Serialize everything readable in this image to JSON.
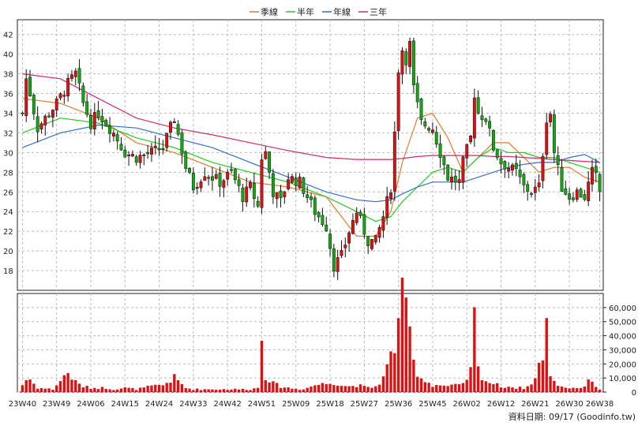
{
  "legend": [
    {
      "label": "季線",
      "color": "#e07b2e"
    },
    {
      "label": "半年",
      "color": "#22cc22"
    },
    {
      "label": "年線",
      "color": "#2f6fd0"
    },
    {
      "label": "三年",
      "color": "#d42a6a"
    }
  ],
  "footer": "資料日期: 09/17  (Goodinfo.tw)",
  "colors": {
    "up": "#dd1111",
    "down": "#11aa11",
    "volume": "#dd1111",
    "grid": "#bbbbbb"
  },
  "chart_data": {
    "type": "candlestick+volume",
    "price_ylim": [
      16,
      43.5
    ],
    "price_ticks": [
      18,
      20,
      22,
      24,
      26,
      28,
      30,
      32,
      34,
      36,
      38,
      40,
      42
    ],
    "volume_ylim": [
      0,
      70000
    ],
    "volume_ticks": [
      "0",
      "10,000",
      "20,000",
      "30,000",
      "40,000",
      "50,000",
      "60,000"
    ],
    "volume_tick_values": [
      0,
      10000,
      20000,
      30000,
      40000,
      50000,
      60000
    ],
    "x_labels": [
      "23W40",
      "23W49",
      "24W06",
      "24W15",
      "24W24",
      "24W33",
      "24W42",
      "24W51",
      "25W09",
      "25W18",
      "25W27",
      "25W36",
      "25W45",
      "26W02",
      "26W12",
      "26W21",
      "26W30",
      "26W38"
    ],
    "x_label_weeks": [
      0,
      9,
      18,
      27,
      36,
      45,
      54,
      63,
      72,
      81,
      90,
      99,
      108,
      117,
      126,
      135,
      144,
      152
    ],
    "anchors": [
      [
        0,
        34.0,
        5000
      ],
      [
        1,
        37.5,
        9000
      ],
      [
        2,
        36.0,
        9000
      ],
      [
        4,
        32.5,
        3000
      ],
      [
        8,
        34.5,
        2000
      ],
      [
        9,
        35.0,
        5000
      ],
      [
        12,
        37.0,
        14000
      ],
      [
        14,
        38.0,
        7000
      ],
      [
        16,
        35.0,
        4000
      ],
      [
        18,
        33.0,
        3000
      ],
      [
        20,
        34.0,
        3000
      ],
      [
        22,
        33.0,
        3000
      ],
      [
        24,
        32.0,
        2000
      ],
      [
        27,
        30.0,
        3000
      ],
      [
        30,
        29.5,
        2000
      ],
      [
        34,
        30.0,
        4000
      ],
      [
        37,
        30.5,
        5000
      ],
      [
        40,
        33.5,
        10000
      ],
      [
        43,
        28.5,
        3000
      ],
      [
        45,
        26.5,
        2000
      ],
      [
        48,
        28.0,
        2000
      ],
      [
        52,
        27.0,
        2000
      ],
      [
        55,
        28.0,
        2000
      ],
      [
        58,
        25.5,
        2000
      ],
      [
        60,
        26.5,
        2000
      ],
      [
        62,
        24.5,
        3000
      ],
      [
        63,
        29.5,
        44000
      ],
      [
        64,
        30.0,
        12000
      ],
      [
        66,
        26.0,
        6000
      ],
      [
        68,
        25.0,
        4000
      ],
      [
        70,
        27.5,
        3000
      ],
      [
        73,
        27.0,
        2000
      ],
      [
        75,
        25.5,
        3000
      ],
      [
        77,
        24.0,
        5000
      ],
      [
        80,
        22.5,
        6000
      ],
      [
        82,
        18.5,
        7000
      ],
      [
        84,
        19.5,
        5000
      ],
      [
        86,
        22.0,
        4000
      ],
      [
        88,
        24.0,
        5000
      ],
      [
        91,
        21.0,
        3000
      ],
      [
        93,
        21.0,
        4000
      ],
      [
        95,
        23.5,
        10000
      ],
      [
        97,
        26.5,
        25000
      ],
      [
        98,
        32.0,
        33000
      ],
      [
        99,
        38.5,
        58000
      ],
      [
        100,
        40.5,
        64000
      ],
      [
        101,
        39.5,
        52000
      ],
      [
        102,
        41.0,
        45000
      ],
      [
        103,
        36.5,
        20000
      ],
      [
        105,
        33.0,
        10000
      ],
      [
        108,
        32.5,
        5000
      ],
      [
        110,
        30.0,
        5000
      ],
      [
        112,
        27.5,
        4000
      ],
      [
        115,
        27.0,
        5000
      ],
      [
        116,
        29.0,
        5000
      ],
      [
        118,
        31.5,
        15000
      ],
      [
        119,
        36.0,
        51000
      ],
      [
        120,
        34.0,
        16000
      ],
      [
        122,
        33.5,
        8000
      ],
      [
        124,
        30.5,
        6000
      ],
      [
        126,
        29.0,
        4000
      ],
      [
        128,
        28.5,
        4000
      ],
      [
        130,
        28.0,
        3000
      ],
      [
        132,
        26.5,
        3000
      ],
      [
        134,
        26.0,
        5000
      ],
      [
        136,
        26.5,
        20000
      ],
      [
        137,
        30.0,
        22000
      ],
      [
        138,
        33.5,
        44000
      ],
      [
        139,
        34.0,
        14000
      ],
      [
        140,
        30.0,
        7000
      ],
      [
        142,
        26.5,
        4000
      ],
      [
        144,
        25.5,
        3000
      ],
      [
        146,
        26.0,
        3000
      ],
      [
        148,
        25.5,
        4000
      ],
      [
        150,
        28.0,
        10000
      ],
      [
        151,
        27.5,
        4000
      ],
      [
        152,
        26.0,
        2000
      ]
    ],
    "ma_series": [
      {
        "name": "季線",
        "color": "#e07b2e",
        "pts": [
          [
            0,
            35.5
          ],
          [
            10,
            35.0
          ],
          [
            20,
            33.5
          ],
          [
            30,
            31.0
          ],
          [
            40,
            30.0
          ],
          [
            50,
            28.5
          ],
          [
            60,
            27.0
          ],
          [
            70,
            26.5
          ],
          [
            80,
            25.5
          ],
          [
            88,
            21.5
          ],
          [
            93,
            21.5
          ],
          [
            97,
            24.0
          ],
          [
            100,
            29.0
          ],
          [
            104,
            33.5
          ],
          [
            108,
            34.0
          ],
          [
            112,
            31.5
          ],
          [
            116,
            28.0
          ],
          [
            120,
            29.5
          ],
          [
            124,
            31.0
          ],
          [
            128,
            31.0
          ],
          [
            132,
            29.5
          ],
          [
            136,
            28.0
          ],
          [
            140,
            28.5
          ],
          [
            144,
            28.5
          ],
          [
            148,
            27.5
          ],
          [
            152,
            27.0
          ]
        ]
      },
      {
        "name": "半年",
        "color": "#22cc22",
        "pts": [
          [
            0,
            32.0
          ],
          [
            10,
            33.5
          ],
          [
            20,
            33.0
          ],
          [
            30,
            31.5
          ],
          [
            40,
            30.5
          ],
          [
            50,
            29.0
          ],
          [
            60,
            28.0
          ],
          [
            70,
            27.0
          ],
          [
            80,
            25.5
          ],
          [
            88,
            24.0
          ],
          [
            93,
            23.0
          ],
          [
            97,
            23.5
          ],
          [
            100,
            25.0
          ],
          [
            104,
            26.5
          ],
          [
            108,
            28.0
          ],
          [
            112,
            28.5
          ],
          [
            116,
            28.0
          ],
          [
            120,
            29.5
          ],
          [
            124,
            30.5
          ],
          [
            128,
            30.0
          ],
          [
            132,
            30.0
          ],
          [
            136,
            29.5
          ],
          [
            140,
            29.5
          ],
          [
            144,
            29.0
          ],
          [
            148,
            28.5
          ],
          [
            152,
            28.0
          ]
        ]
      },
      {
        "name": "年線",
        "color": "#2f6fd0",
        "pts": [
          [
            0,
            30.5
          ],
          [
            10,
            32.0
          ],
          [
            20,
            32.8
          ],
          [
            30,
            32.5
          ],
          [
            40,
            31.5
          ],
          [
            50,
            30.5
          ],
          [
            60,
            29.0
          ],
          [
            70,
            27.5
          ],
          [
            80,
            26.0
          ],
          [
            88,
            25.2
          ],
          [
            93,
            25.0
          ],
          [
            97,
            25.2
          ],
          [
            100,
            25.8
          ],
          [
            104,
            26.5
          ],
          [
            108,
            27.0
          ],
          [
            112,
            27.0
          ],
          [
            116,
            27.0
          ],
          [
            120,
            27.5
          ],
          [
            124,
            28.0
          ],
          [
            128,
            28.5
          ],
          [
            132,
            28.8
          ],
          [
            136,
            29.0
          ],
          [
            140,
            29.0
          ],
          [
            144,
            29.5
          ],
          [
            148,
            29.8
          ],
          [
            152,
            29.0
          ]
        ]
      },
      {
        "name": "三年",
        "color": "#d42a6a",
        "pts": [
          [
            0,
            38.0
          ],
          [
            10,
            37.5
          ],
          [
            20,
            35.5
          ],
          [
            30,
            33.5
          ],
          [
            40,
            32.5
          ],
          [
            50,
            31.8
          ],
          [
            60,
            31.0
          ],
          [
            70,
            30.2
          ],
          [
            80,
            29.5
          ],
          [
            88,
            29.3
          ],
          [
            93,
            29.3
          ],
          [
            97,
            29.3
          ],
          [
            100,
            29.4
          ],
          [
            104,
            29.6
          ],
          [
            108,
            29.7
          ],
          [
            112,
            29.7
          ],
          [
            116,
            29.7
          ],
          [
            120,
            29.7
          ],
          [
            124,
            29.6
          ],
          [
            128,
            29.6
          ],
          [
            132,
            29.5
          ],
          [
            136,
            29.4
          ],
          [
            140,
            29.3
          ],
          [
            144,
            29.2
          ],
          [
            148,
            29.1
          ],
          [
            152,
            29.0
          ]
        ]
      }
    ]
  }
}
